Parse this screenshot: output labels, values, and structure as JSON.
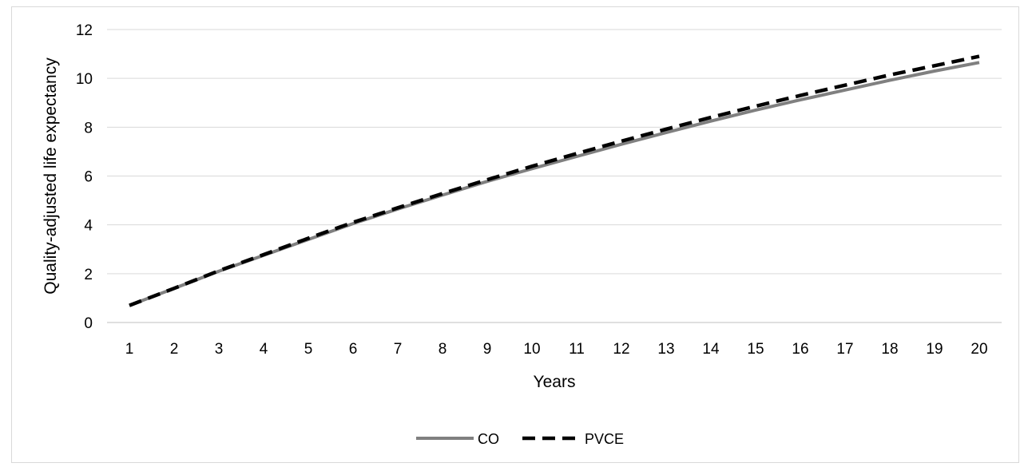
{
  "chart_data": {
    "type": "line",
    "title": "",
    "xlabel": "Years",
    "ylabel": "Quality-adjusted life expectancy",
    "x": [
      1,
      2,
      3,
      4,
      5,
      6,
      7,
      8,
      9,
      10,
      11,
      12,
      13,
      14,
      15,
      16,
      17,
      18,
      19,
      20
    ],
    "x_tick_labels": [
      "1",
      "2",
      "3",
      "4",
      "5",
      "6",
      "7",
      "8",
      "9",
      "10",
      "11",
      "12",
      "13",
      "14",
      "15",
      "16",
      "17",
      "18",
      "19",
      "20"
    ],
    "y_tick_labels": [
      "0",
      "2",
      "4",
      "6",
      "8",
      "10",
      "12"
    ],
    "ylim": [
      0,
      12
    ],
    "grid": "horizontal",
    "legend_position": "bottom",
    "series": [
      {
        "name": "CO",
        "color": "#808080",
        "style": "solid",
        "values": [
          0.7,
          1.4,
          2.1,
          2.75,
          3.4,
          4.05,
          4.65,
          5.22,
          5.78,
          6.3,
          6.8,
          7.3,
          7.78,
          8.25,
          8.7,
          9.12,
          9.52,
          9.92,
          10.3,
          10.65
        ]
      },
      {
        "name": "PVCE",
        "color": "#000000",
        "style": "dashed",
        "values": [
          0.7,
          1.4,
          2.12,
          2.78,
          3.45,
          4.1,
          4.7,
          5.28,
          5.85,
          6.4,
          6.92,
          7.43,
          7.92,
          8.4,
          8.86,
          9.3,
          9.72,
          10.14,
          10.52,
          10.9
        ]
      }
    ]
  }
}
